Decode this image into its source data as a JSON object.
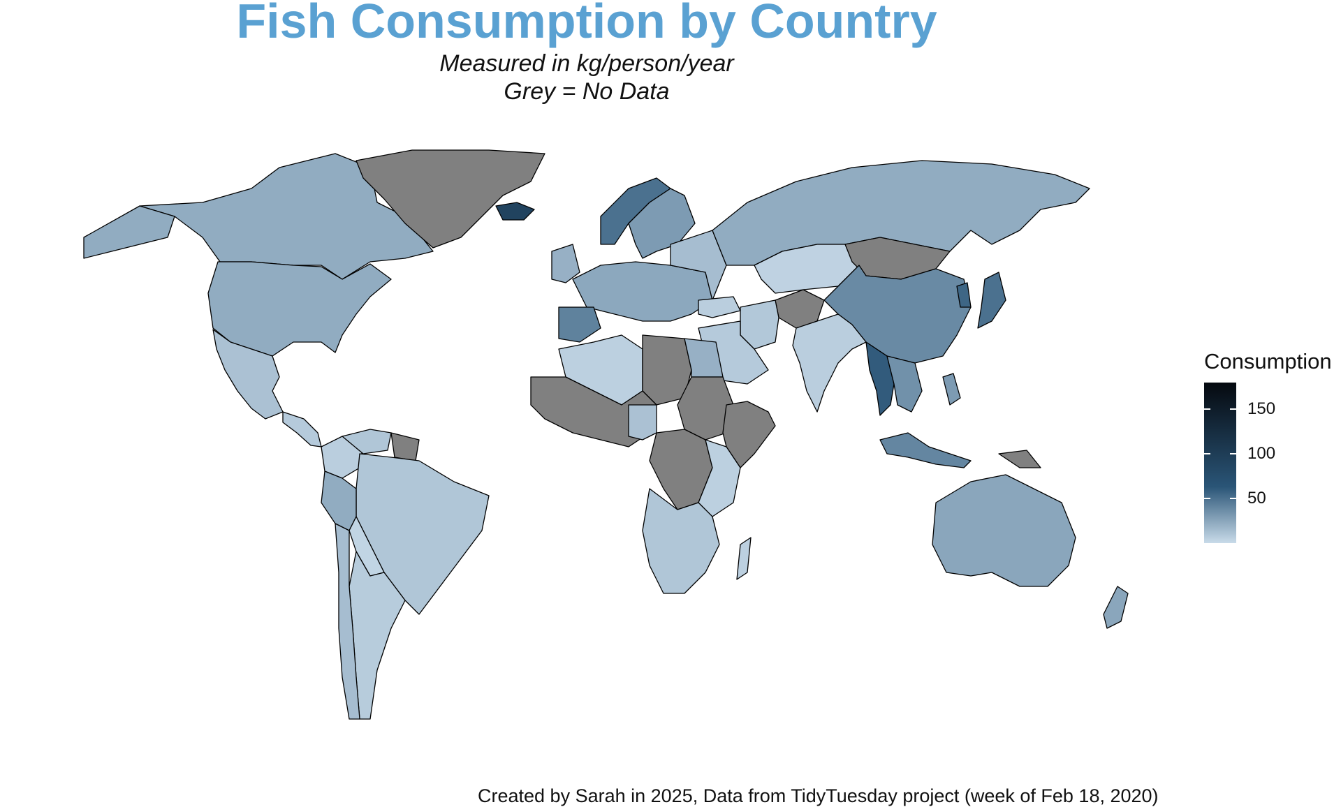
{
  "title": "Fish Consumption by Country",
  "subtitle_line1": "Measured in kg/person/year",
  "subtitle_line2": "Grey = No Data",
  "legend": {
    "title": "Consumption",
    "ticks": [
      "150",
      "100",
      "50"
    ],
    "tick_values": [
      150,
      100,
      50
    ],
    "range": [
      0,
      180
    ],
    "colors": {
      "low": "#c9dbe9",
      "mid": "#2a5577",
      "high": "#05090f",
      "no_data": "#808080"
    }
  },
  "caption": "Created by Sarah in 2025, Data from TidyTuesday project (week of Feb 18, 2020)",
  "map_regions": [
    {
      "name": "Canada",
      "value": 22
    },
    {
      "name": "United States",
      "value": 22
    },
    {
      "name": "Greenland",
      "value": null
    },
    {
      "name": "Mexico",
      "value": 12
    },
    {
      "name": "Brazil",
      "value": 10
    },
    {
      "name": "Russia",
      "value": 22
    },
    {
      "name": "China",
      "value": 38
    },
    {
      "name": "Mongolia",
      "value": null
    },
    {
      "name": "Kazakhstan",
      "value": 4
    },
    {
      "name": "India",
      "value": 6
    },
    {
      "name": "Australia",
      "value": 25
    },
    {
      "name": "Iceland",
      "value": 90
    },
    {
      "name": "Myanmar",
      "value": 60
    },
    {
      "name": "Norway",
      "value": 50
    },
    {
      "name": "Japan",
      "value": 50
    },
    {
      "name": "Indonesia",
      "value": 40
    },
    {
      "name": "Libya",
      "value": null
    },
    {
      "name": "Sudan",
      "value": null
    },
    {
      "name": "Egypt",
      "value": 20
    },
    {
      "name": "DR Congo",
      "value": null
    },
    {
      "name": "Afghanistan",
      "value": null
    },
    {
      "name": "Papua New Guinea",
      "value": null
    }
  ]
}
